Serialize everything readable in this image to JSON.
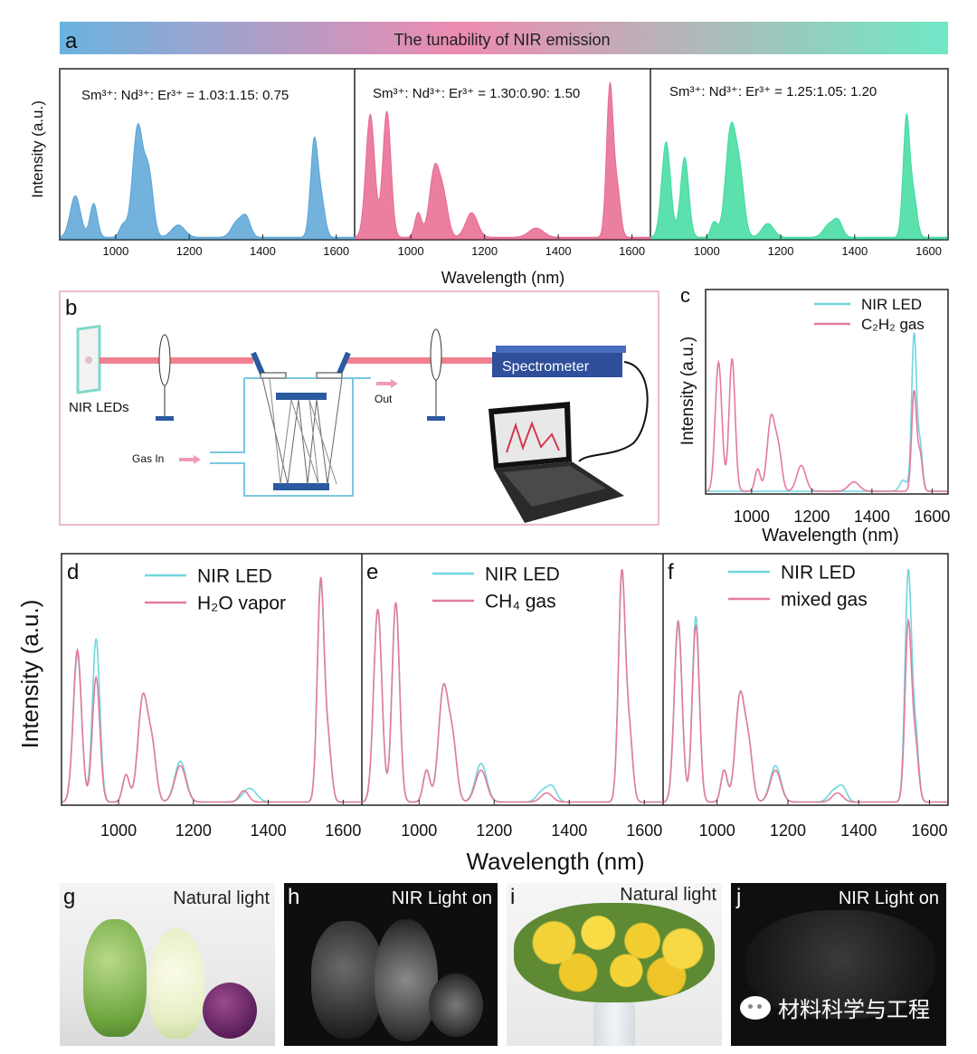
{
  "banner": {
    "letter": "a",
    "title": "The tunability of NIR emission",
    "colors": [
      "#6ab3e0",
      "#ee8bb0",
      "#6fe8c6"
    ]
  },
  "panel_labels": {
    "b": "b",
    "c": "c",
    "d": "d",
    "e": "e",
    "f": "f"
  },
  "diagram": {
    "leds_label": "NIR LEDs",
    "spectrometer_label": "Spectrometer",
    "gas_in_label": "Gas In",
    "out_label": "Out"
  },
  "chart_data": [
    {
      "id": "a1",
      "type": "area",
      "annotation": "Sm³⁺: Nd³⁺: Er³⁺ = 1.03:1.15: 0.75",
      "color": "#5aa5d6",
      "xlim": [
        850,
        1650
      ],
      "ylim": [
        0,
        1.1
      ],
      "xticks": [
        1000,
        1200,
        1400,
        1600
      ],
      "peaks": [
        [
          890,
          0.27,
          14
        ],
        [
          940,
          0.22,
          10
        ],
        [
          1020,
          0.08,
          10
        ],
        [
          1060,
          0.72,
          14
        ],
        [
          1090,
          0.4,
          12
        ],
        [
          1170,
          0.08,
          18
        ],
        [
          1330,
          0.1,
          15
        ],
        [
          1355,
          0.12,
          12
        ],
        [
          1540,
          0.62,
          10
        ],
        [
          1560,
          0.22,
          10
        ]
      ]
    },
    {
      "id": "a2",
      "type": "area",
      "annotation": "Sm³⁺: Nd³⁺: Er³⁺ = 1.30:0.90: 1.50",
      "color": "#e8698f",
      "xlim": [
        850,
        1650
      ],
      "ylim": [
        0,
        1.1
      ],
      "xticks": [
        1000,
        1200,
        1400,
        1600
      ],
      "peaks": [
        [
          890,
          0.8,
          12
        ],
        [
          935,
          0.82,
          11
        ],
        [
          1020,
          0.16,
          9
        ],
        [
          1065,
          0.45,
          14
        ],
        [
          1090,
          0.22,
          12
        ],
        [
          1165,
          0.16,
          16
        ],
        [
          1340,
          0.06,
          20
        ],
        [
          1540,
          0.98,
          9
        ],
        [
          1560,
          0.3,
          9
        ]
      ]
    },
    {
      "id": "a3",
      "type": "area",
      "annotation": "Sm³⁺: Nd³⁺: Er³⁺ = 1.25:1.05: 1.20",
      "color": "#3fdba0",
      "xlim": [
        850,
        1650
      ],
      "ylim": [
        0,
        1.1
      ],
      "xticks": [
        1000,
        1200,
        1400,
        1600
      ],
      "peaks": [
        [
          890,
          0.62,
          12
        ],
        [
          940,
          0.52,
          11
        ],
        [
          1020,
          0.1,
          9
        ],
        [
          1065,
          0.7,
          14
        ],
        [
          1090,
          0.35,
          12
        ],
        [
          1165,
          0.09,
          16
        ],
        [
          1330,
          0.08,
          15
        ],
        [
          1355,
          0.1,
          12
        ],
        [
          1540,
          0.78,
          9
        ],
        [
          1560,
          0.25,
          9
        ]
      ]
    },
    {
      "id": "c",
      "type": "line",
      "xlim": [
        850,
        1650
      ],
      "ylim": [
        0,
        1.1
      ],
      "xticks": [
        1000,
        1200,
        1400,
        1600
      ],
      "series": [
        {
          "name": "NIR LED",
          "color": "#6fd6de",
          "peaks": [
            [
              1505,
              0.06,
              12
            ],
            [
              1540,
              0.85,
              8
            ],
            [
              1560,
              0.25,
              8
            ]
          ]
        },
        {
          "name": "C₂H₂ gas",
          "color": "#e57a9c",
          "peaks": [
            [
              890,
              0.7,
              11
            ],
            [
              935,
              0.72,
              10
            ],
            [
              1020,
              0.12,
              9
            ],
            [
              1065,
              0.4,
              13
            ],
            [
              1090,
              0.2,
              11
            ],
            [
              1165,
              0.14,
              15
            ],
            [
              1340,
              0.05,
              18
            ],
            [
              1540,
              0.54,
              8
            ],
            [
              1560,
              0.2,
              8
            ]
          ]
        }
      ]
    },
    {
      "id": "d",
      "type": "line",
      "xlim": [
        850,
        1650
      ],
      "ylim": [
        0,
        1.1
      ],
      "xticks": [
        1000,
        1200,
        1400,
        1600
      ],
      "series": [
        {
          "name": "NIR LED",
          "color": "#6fd6de",
          "peaks": [
            [
              890,
              0.65,
              11
            ],
            [
              940,
              0.72,
              10
            ],
            [
              1020,
              0.12,
              9
            ],
            [
              1065,
              0.46,
              13
            ],
            [
              1090,
              0.22,
              11
            ],
            [
              1165,
              0.18,
              15
            ],
            [
              1350,
              0.06,
              18
            ],
            [
              1540,
              0.95,
              9
            ],
            [
              1560,
              0.25,
              9
            ]
          ]
        },
        {
          "name": "H₂O vapor",
          "color": "#e57a9c",
          "peaks": [
            [
              890,
              0.67,
              11
            ],
            [
              940,
              0.55,
              10
            ],
            [
              1020,
              0.12,
              9
            ],
            [
              1065,
              0.46,
              13
            ],
            [
              1090,
              0.22,
              11
            ],
            [
              1165,
              0.16,
              15
            ],
            [
              1335,
              0.05,
              12
            ],
            [
              1540,
              0.97,
              9
            ],
            [
              1560,
              0.25,
              9
            ]
          ]
        }
      ]
    },
    {
      "id": "e",
      "type": "line",
      "xlim": [
        850,
        1650
      ],
      "ylim": [
        0,
        1.1
      ],
      "xticks": [
        1000,
        1200,
        1400,
        1600
      ],
      "series": [
        {
          "name": "NIR LED",
          "color": "#6fd6de",
          "peaks": [
            [
              890,
              0.85,
              11
            ],
            [
              938,
              0.88,
              10
            ],
            [
              1020,
              0.14,
              9
            ],
            [
              1065,
              0.5,
              13
            ],
            [
              1090,
              0.24,
              11
            ],
            [
              1165,
              0.17,
              15
            ],
            [
              1330,
              0.05,
              15
            ],
            [
              1355,
              0.06,
              12
            ],
            [
              1540,
              1.0,
              9
            ],
            [
              1560,
              0.3,
              9
            ]
          ]
        },
        {
          "name": "CH₄ gas",
          "color": "#e57a9c",
          "peaks": [
            [
              890,
              0.85,
              11
            ],
            [
              938,
              0.88,
              10
            ],
            [
              1020,
              0.14,
              9
            ],
            [
              1065,
              0.5,
              13
            ],
            [
              1090,
              0.24,
              11
            ],
            [
              1165,
              0.14,
              15
            ],
            [
              1340,
              0.04,
              15
            ],
            [
              1540,
              1.0,
              9
            ],
            [
              1560,
              0.3,
              9
            ]
          ]
        }
      ]
    },
    {
      "id": "f",
      "type": "line",
      "xlim": [
        850,
        1650
      ],
      "ylim": [
        0,
        1.1
      ],
      "xticks": [
        1000,
        1200,
        1400,
        1600
      ],
      "series": [
        {
          "name": "NIR LED",
          "color": "#6fd6de",
          "peaks": [
            [
              890,
              0.78,
              11
            ],
            [
              940,
              0.82,
              10
            ],
            [
              1020,
              0.14,
              9
            ],
            [
              1065,
              0.47,
              13
            ],
            [
              1090,
              0.22,
              11
            ],
            [
              1165,
              0.16,
              15
            ],
            [
              1330,
              0.05,
              15
            ],
            [
              1355,
              0.06,
              12
            ],
            [
              1540,
              1.0,
              9
            ],
            [
              1560,
              0.3,
              9
            ]
          ]
        },
        {
          "name": "mixed gas",
          "color": "#e57a9c",
          "peaks": [
            [
              890,
              0.8,
              11
            ],
            [
              940,
              0.78,
              10
            ],
            [
              1020,
              0.14,
              9
            ],
            [
              1065,
              0.47,
              13
            ],
            [
              1090,
              0.22,
              11
            ],
            [
              1165,
              0.14,
              15
            ],
            [
              1340,
              0.04,
              15
            ],
            [
              1540,
              0.78,
              9
            ],
            [
              1560,
              0.25,
              9
            ]
          ]
        }
      ]
    }
  ],
  "axes": {
    "xlabel": "Wavelength (nm)",
    "ylabel": "Intensity (a.u.)"
  },
  "photos": [
    {
      "letter": "g",
      "caption": "Natural light"
    },
    {
      "letter": "h",
      "caption": "NIR Light  on"
    },
    {
      "letter": "i",
      "caption": "Natural light"
    },
    {
      "letter": "j",
      "caption": "NIR Light  on"
    }
  ],
  "watermark": "材料科学与工程"
}
